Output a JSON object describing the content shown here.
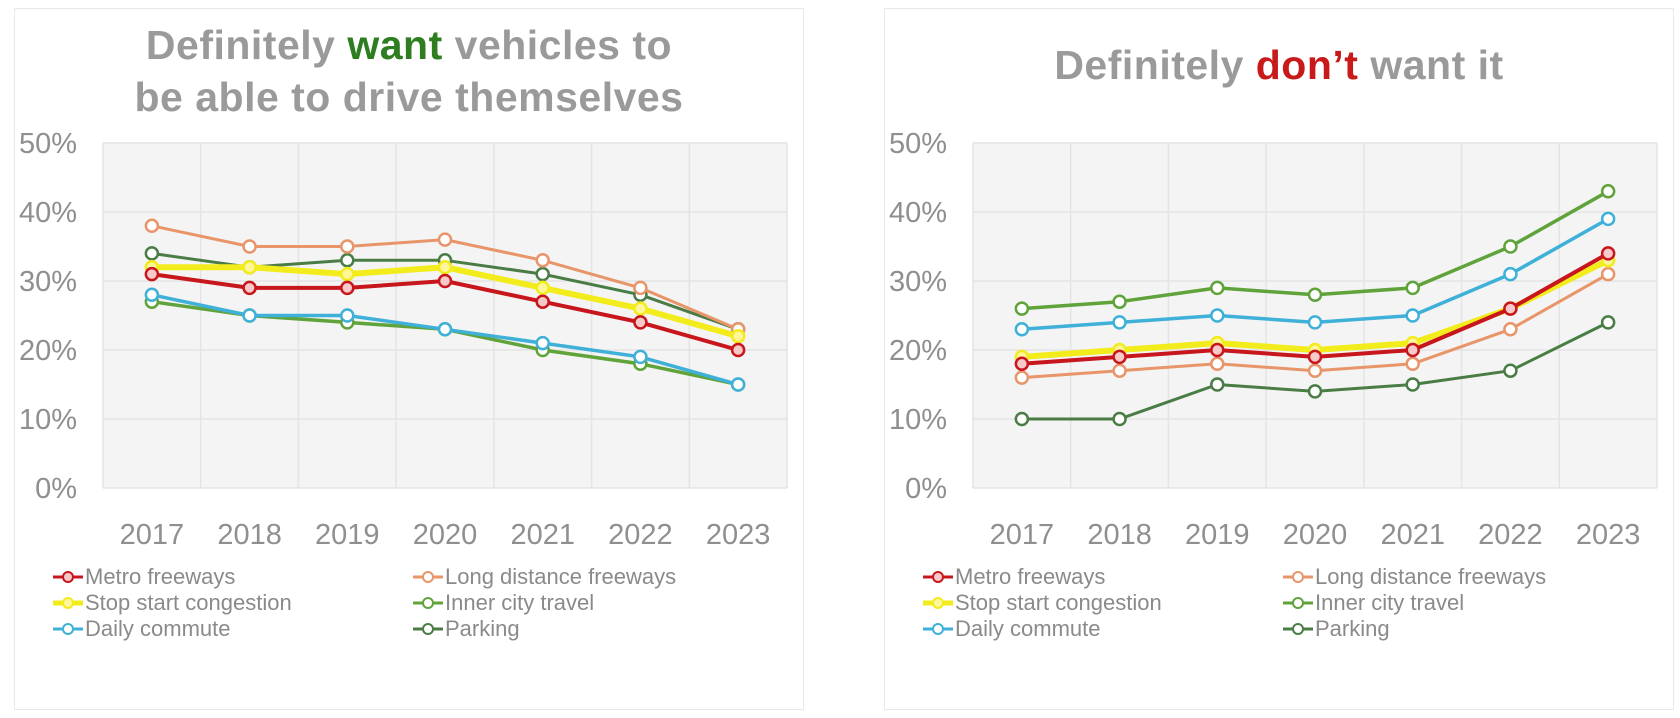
{
  "chart_data": [
    {
      "type": "line",
      "title": "Definitely want vehicles to be able to drive themselves",
      "title_parts": [
        {
          "text": "Definitely ",
          "style": "normal"
        },
        {
          "text": "want",
          "style": "green"
        },
        {
          "text": " vehicles to",
          "style": "normal"
        },
        {
          "text": "\n",
          "style": "break"
        },
        {
          "text": "be able to drive themselves",
          "style": "normal"
        }
      ],
      "xlabel": "",
      "ylabel": "",
      "x": [
        "2017",
        "2018",
        "2019",
        "2020",
        "2021",
        "2022",
        "2023"
      ],
      "ylim": [
        0,
        50
      ],
      "yticks": [
        "0%",
        "10%",
        "20%",
        "30%",
        "40%",
        "50%"
      ],
      "ytick_values": [
        0,
        10,
        20,
        30,
        40,
        50
      ],
      "grid": true,
      "legend_position": "bottom",
      "series": [
        {
          "name": "Metro freeways",
          "color": "#c8161d",
          "values": [
            31,
            29,
            29,
            30,
            27,
            24,
            20
          ]
        },
        {
          "name": "Long distance freeways",
          "color": "#e8956a",
          "values": [
            38,
            35,
            35,
            36,
            33,
            29,
            23
          ]
        },
        {
          "name": "Stop start congestion",
          "color": "#f2ec1c",
          "values": [
            32,
            32,
            31,
            32,
            29,
            26,
            22
          ]
        },
        {
          "name": "Inner city travel",
          "color": "#5fa33a",
          "values": [
            27,
            25,
            24,
            23,
            20,
            18,
            15
          ]
        },
        {
          "name": "Daily commute",
          "color": "#3fb0d8",
          "values": [
            28,
            25,
            25,
            23,
            21,
            19,
            15
          ]
        },
        {
          "name": "Parking",
          "color": "#4a7d46",
          "values": [
            34,
            32,
            33,
            33,
            31,
            28,
            23
          ]
        }
      ]
    },
    {
      "type": "line",
      "title": "Definitely don’t want it",
      "title_parts": [
        {
          "text": "Definitely ",
          "style": "normal"
        },
        {
          "text": "don’t",
          "style": "red"
        },
        {
          "text": " want it",
          "style": "normal"
        }
      ],
      "xlabel": "",
      "ylabel": "",
      "x": [
        "2017",
        "2018",
        "2019",
        "2020",
        "2021",
        "2022",
        "2023"
      ],
      "ylim": [
        0,
        50
      ],
      "yticks": [
        "0%",
        "10%",
        "20%",
        "30%",
        "40%",
        "50%"
      ],
      "ytick_values": [
        0,
        10,
        20,
        30,
        40,
        50
      ],
      "grid": true,
      "legend_position": "bottom",
      "series": [
        {
          "name": "Metro freeways",
          "color": "#c8161d",
          "values": [
            18,
            19,
            20,
            19,
            20,
            26,
            34
          ]
        },
        {
          "name": "Long distance freeways",
          "color": "#e8956a",
          "values": [
            16,
            17,
            18,
            17,
            18,
            23,
            31
          ]
        },
        {
          "name": "Stop start congestion",
          "color": "#f2ec1c",
          "values": [
            19,
            20,
            21,
            20,
            21,
            26,
            33
          ]
        },
        {
          "name": "Inner city travel",
          "color": "#5fa33a",
          "values": [
            26,
            27,
            29,
            28,
            29,
            35,
            43
          ]
        },
        {
          "name": "Daily commute",
          "color": "#3fb0d8",
          "values": [
            23,
            24,
            25,
            24,
            25,
            31,
            39
          ]
        },
        {
          "name": "Parking",
          "color": "#4a7d46",
          "values": [
            10,
            10,
            15,
            14,
            15,
            17,
            24
          ]
        }
      ]
    }
  ]
}
